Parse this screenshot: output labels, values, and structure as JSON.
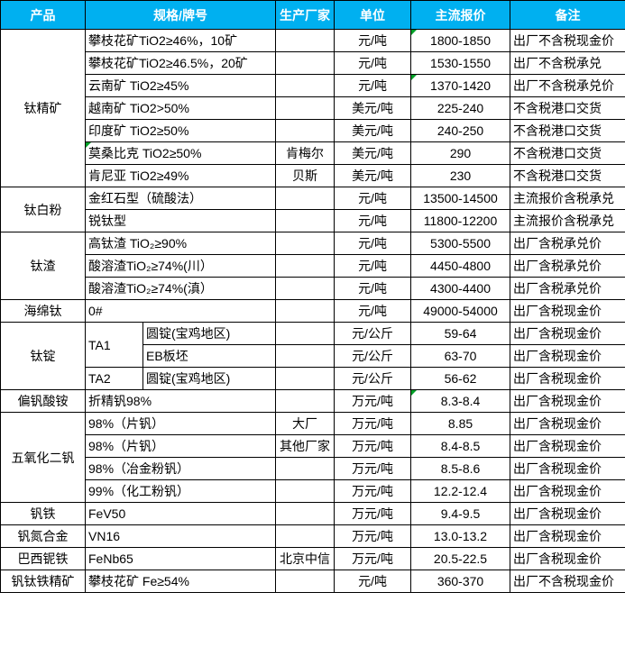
{
  "colors": {
    "header_bg": "#00B0F0",
    "header_text": "#FFFFFF",
    "grid_border": "#000000",
    "error_marker": "#00A028"
  },
  "table": {
    "header": [
      {
        "label": "产品",
        "colspan": 1
      },
      {
        "label": "规格/牌号",
        "colspan": 2
      },
      {
        "label": "生产厂家",
        "colspan": 1
      },
      {
        "label": "单位",
        "colspan": 1
      },
      {
        "label": "主流报价",
        "colspan": 1
      },
      {
        "label": "备注",
        "colspan": 1
      }
    ],
    "rows": [
      {
        "cells": [
          {
            "name": "product",
            "text": "钛精矿",
            "rowspan": 7,
            "align": "center"
          },
          {
            "name": "spec",
            "text": "攀枝花矿TiO2≥46%，10矿",
            "colspan": 2,
            "align": "left"
          },
          {
            "name": "manufacturer",
            "text": "",
            "align": "center"
          },
          {
            "name": "unit",
            "text": "元/吨",
            "align": "center"
          },
          {
            "name": "price",
            "text": "1800-1850",
            "align": "center",
            "marker": true
          },
          {
            "name": "note",
            "text": "出厂不含税现金价",
            "align": "left"
          }
        ]
      },
      {
        "cells": [
          {
            "name": "spec",
            "text": "攀枝花矿TiO2≥46.5%，20矿",
            "colspan": 2,
            "align": "left"
          },
          {
            "name": "manufacturer",
            "text": "",
            "align": "center"
          },
          {
            "name": "unit",
            "text": "元/吨",
            "align": "center"
          },
          {
            "name": "price",
            "text": "1530-1550",
            "align": "center"
          },
          {
            "name": "note",
            "text": "出厂不含税承兑",
            "align": "left"
          }
        ]
      },
      {
        "cells": [
          {
            "name": "spec",
            "text": "云南矿 TiO2≥45%",
            "colspan": 2,
            "align": "left"
          },
          {
            "name": "manufacturer",
            "text": "",
            "align": "center"
          },
          {
            "name": "unit",
            "text": "元/吨",
            "align": "center"
          },
          {
            "name": "price",
            "text": "1370-1420",
            "align": "center",
            "marker": true
          },
          {
            "name": "note",
            "text": "出厂不含税承兑价",
            "align": "left"
          }
        ]
      },
      {
        "cells": [
          {
            "name": "spec",
            "text": "越南矿 TiO2>50%",
            "colspan": 2,
            "align": "left"
          },
          {
            "name": "manufacturer",
            "text": "",
            "align": "center"
          },
          {
            "name": "unit",
            "text": "美元/吨",
            "align": "center"
          },
          {
            "name": "price",
            "text": "225-240",
            "align": "center"
          },
          {
            "name": "note",
            "text": "不含税港口交货",
            "align": "left"
          }
        ]
      },
      {
        "cells": [
          {
            "name": "spec",
            "text": "印度矿 TiO2≥50%",
            "colspan": 2,
            "align": "left"
          },
          {
            "name": "manufacturer",
            "text": "",
            "align": "center"
          },
          {
            "name": "unit",
            "text": "美元/吨",
            "align": "center"
          },
          {
            "name": "price",
            "text": "240-250",
            "align": "center"
          },
          {
            "name": "note",
            "text": "不含税港口交货",
            "align": "left"
          }
        ]
      },
      {
        "cells": [
          {
            "name": "spec",
            "text": "莫桑比克 TiO2≥50%",
            "colspan": 2,
            "align": "left",
            "marker": true
          },
          {
            "name": "manufacturer",
            "text": "肯梅尔",
            "align": "center"
          },
          {
            "name": "unit",
            "text": "美元/吨",
            "align": "center"
          },
          {
            "name": "price",
            "text": "290",
            "align": "center"
          },
          {
            "name": "note",
            "text": "不含税港口交货",
            "align": "left"
          }
        ]
      },
      {
        "cells": [
          {
            "name": "spec",
            "text": "肯尼亚 TiO2≥49%",
            "colspan": 2,
            "align": "left"
          },
          {
            "name": "manufacturer",
            "text": "贝斯",
            "align": "center"
          },
          {
            "name": "unit",
            "text": "美元/吨",
            "align": "center"
          },
          {
            "name": "price",
            "text": "230",
            "align": "center"
          },
          {
            "name": "note",
            "text": "不含税港口交货",
            "align": "left"
          }
        ]
      },
      {
        "cells": [
          {
            "name": "product",
            "text": "钛白粉",
            "rowspan": 2,
            "align": "center"
          },
          {
            "name": "spec",
            "text": "金红石型（硫酸法）",
            "colspan": 2,
            "align": "left"
          },
          {
            "name": "manufacturer",
            "text": "",
            "align": "center"
          },
          {
            "name": "unit",
            "text": "元/吨",
            "align": "center"
          },
          {
            "name": "price",
            "text": "13500-14500",
            "align": "center"
          },
          {
            "name": "note",
            "text": "主流报价含税承兑",
            "align": "left"
          }
        ]
      },
      {
        "cells": [
          {
            "name": "spec",
            "text": "锐钛型",
            "colspan": 2,
            "align": "left"
          },
          {
            "name": "manufacturer",
            "text": "",
            "align": "center"
          },
          {
            "name": "unit",
            "text": "元/吨",
            "align": "center"
          },
          {
            "name": "price",
            "text": "11800-12200",
            "align": "center"
          },
          {
            "name": "note",
            "text": "主流报价含税承兑",
            "align": "left"
          }
        ]
      },
      {
        "cells": [
          {
            "name": "product",
            "text": "钛渣",
            "rowspan": 3,
            "align": "center"
          },
          {
            "name": "spec",
            "text": "高钛渣 TiO₂≥90%",
            "colspan": 2,
            "align": "left"
          },
          {
            "name": "manufacturer",
            "text": "",
            "align": "center"
          },
          {
            "name": "unit",
            "text": "元/吨",
            "align": "center"
          },
          {
            "name": "price",
            "text": "5300-5500",
            "align": "center"
          },
          {
            "name": "note",
            "text": "出厂含税承兑价",
            "align": "left"
          }
        ]
      },
      {
        "cells": [
          {
            "name": "spec",
            "text": "酸溶渣TiO₂≥74%(川）",
            "colspan": 2,
            "align": "left"
          },
          {
            "name": "manufacturer",
            "text": "",
            "align": "center"
          },
          {
            "name": "unit",
            "text": "元/吨",
            "align": "center"
          },
          {
            "name": "price",
            "text": "4450-4800",
            "align": "center"
          },
          {
            "name": "note",
            "text": "出厂含税承兑价",
            "align": "left"
          }
        ]
      },
      {
        "cells": [
          {
            "name": "spec",
            "text": "酸溶渣TiO₂≥74%(滇）",
            "colspan": 2,
            "align": "left"
          },
          {
            "name": "manufacturer",
            "text": "",
            "align": "center"
          },
          {
            "name": "unit",
            "text": "元/吨",
            "align": "center"
          },
          {
            "name": "price",
            "text": "4300-4400",
            "align": "center"
          },
          {
            "name": "note",
            "text": "出厂含税承兑价",
            "align": "left"
          }
        ]
      },
      {
        "cells": [
          {
            "name": "product",
            "text": "海绵钛",
            "align": "center"
          },
          {
            "name": "spec",
            "text": "0#",
            "colspan": 2,
            "align": "left"
          },
          {
            "name": "manufacturer",
            "text": "",
            "align": "center"
          },
          {
            "name": "unit",
            "text": "元/吨",
            "align": "center"
          },
          {
            "name": "price",
            "text": "49000-54000",
            "align": "center"
          },
          {
            "name": "note",
            "text": "出厂含税现金价",
            "align": "left"
          }
        ]
      },
      {
        "cells": [
          {
            "name": "product",
            "text": "钛锭",
            "rowspan": 3,
            "align": "center"
          },
          {
            "name": "grade",
            "text": "TA1",
            "rowspan": 2,
            "align": "left"
          },
          {
            "name": "shape",
            "text": "圆锭(宝鸡地区)",
            "align": "left"
          },
          {
            "name": "manufacturer",
            "text": "",
            "align": "center"
          },
          {
            "name": "unit",
            "text": "元/公斤",
            "align": "center"
          },
          {
            "name": "price",
            "text": "59-64",
            "align": "center"
          },
          {
            "name": "note",
            "text": "出厂含税现金价",
            "align": "left"
          }
        ]
      },
      {
        "cells": [
          {
            "name": "shape",
            "text": "EB板坯",
            "align": "left"
          },
          {
            "name": "manufacturer",
            "text": "",
            "align": "center"
          },
          {
            "name": "unit",
            "text": "元/公斤",
            "align": "center"
          },
          {
            "name": "price",
            "text": "63-70",
            "align": "center"
          },
          {
            "name": "note",
            "text": "出厂含税现金价",
            "align": "left"
          }
        ]
      },
      {
        "cells": [
          {
            "name": "grade",
            "text": "TA2",
            "align": "left"
          },
          {
            "name": "shape",
            "text": "圆锭(宝鸡地区)",
            "align": "left"
          },
          {
            "name": "manufacturer",
            "text": "",
            "align": "center"
          },
          {
            "name": "unit",
            "text": "元/公斤",
            "align": "center"
          },
          {
            "name": "price",
            "text": "56-62",
            "align": "center"
          },
          {
            "name": "note",
            "text": "出厂含税现金价",
            "align": "left"
          }
        ]
      },
      {
        "cells": [
          {
            "name": "product",
            "text": "偏钒酸铵",
            "align": "center"
          },
          {
            "name": "spec",
            "text": "折精钒98%",
            "colspan": 2,
            "align": "left"
          },
          {
            "name": "manufacturer",
            "text": "",
            "align": "center"
          },
          {
            "name": "unit",
            "text": "万元/吨",
            "align": "center"
          },
          {
            "name": "price",
            "text": "8.3-8.4",
            "align": "center",
            "marker": true
          },
          {
            "name": "note",
            "text": "出厂含税现金价",
            "align": "left"
          }
        ]
      },
      {
        "cells": [
          {
            "name": "product",
            "text": "五氧化二钒",
            "rowspan": 4,
            "align": "center"
          },
          {
            "name": "spec",
            "text": "98%（片钒）",
            "colspan": 2,
            "align": "left"
          },
          {
            "name": "manufacturer",
            "text": "大厂",
            "align": "center"
          },
          {
            "name": "unit",
            "text": "万元/吨",
            "align": "center"
          },
          {
            "name": "price",
            "text": "8.85",
            "align": "center"
          },
          {
            "name": "note",
            "text": "出厂含税现金价",
            "align": "left"
          }
        ]
      },
      {
        "cells": [
          {
            "name": "spec",
            "text": "98%（片钒）",
            "colspan": 2,
            "align": "left"
          },
          {
            "name": "manufacturer",
            "text": "其他厂家",
            "align": "center"
          },
          {
            "name": "unit",
            "text": "万元/吨",
            "align": "center"
          },
          {
            "name": "price",
            "text": "8.4-8.5",
            "align": "center"
          },
          {
            "name": "note",
            "text": "出厂含税现金价",
            "align": "left"
          }
        ]
      },
      {
        "cells": [
          {
            "name": "spec",
            "text": "98%（冶金粉钒）",
            "colspan": 2,
            "align": "left"
          },
          {
            "name": "manufacturer",
            "text": "",
            "align": "center"
          },
          {
            "name": "unit",
            "text": "万元/吨",
            "align": "center"
          },
          {
            "name": "price",
            "text": "8.5-8.6",
            "align": "center"
          },
          {
            "name": "note",
            "text": "出厂含税现金价",
            "align": "left"
          }
        ]
      },
      {
        "cells": [
          {
            "name": "spec",
            "text": "99%（化工粉钒）",
            "colspan": 2,
            "align": "left"
          },
          {
            "name": "manufacturer",
            "text": "",
            "align": "center"
          },
          {
            "name": "unit",
            "text": "万元/吨",
            "align": "center"
          },
          {
            "name": "price",
            "text": "12.2-12.4",
            "align": "center"
          },
          {
            "name": "note",
            "text": "出厂含税现金价",
            "align": "left"
          }
        ]
      },
      {
        "cells": [
          {
            "name": "product",
            "text": "钒铁",
            "align": "center"
          },
          {
            "name": "spec",
            "text": "FeV50",
            "colspan": 2,
            "align": "left"
          },
          {
            "name": "manufacturer",
            "text": "",
            "align": "center"
          },
          {
            "name": "unit",
            "text": "万元/吨",
            "align": "center"
          },
          {
            "name": "price",
            "text": "9.4-9.5",
            "align": "center"
          },
          {
            "name": "note",
            "text": "出厂含税现金价",
            "align": "left"
          }
        ]
      },
      {
        "cells": [
          {
            "name": "product",
            "text": "钒氮合金",
            "align": "center"
          },
          {
            "name": "spec",
            "text": "VN16",
            "colspan": 2,
            "align": "left"
          },
          {
            "name": "manufacturer",
            "text": "",
            "align": "center"
          },
          {
            "name": "unit",
            "text": "万元/吨",
            "align": "center"
          },
          {
            "name": "price",
            "text": "13.0-13.2",
            "align": "center"
          },
          {
            "name": "note",
            "text": "出厂含税现金价",
            "align": "left"
          }
        ]
      },
      {
        "cells": [
          {
            "name": "product",
            "text": "巴西铌铁",
            "align": "center"
          },
          {
            "name": "spec",
            "text": "FeNb65",
            "colspan": 2,
            "align": "left"
          },
          {
            "name": "manufacturer",
            "text": "北京中信",
            "align": "center"
          },
          {
            "name": "unit",
            "text": "万元/吨",
            "align": "center"
          },
          {
            "name": "price",
            "text": "20.5-22.5",
            "align": "center"
          },
          {
            "name": "note",
            "text": "出厂含税现金价",
            "align": "left"
          }
        ]
      },
      {
        "cells": [
          {
            "name": "product",
            "text": "钒钛铁精矿",
            "align": "center"
          },
          {
            "name": "spec",
            "text": "攀枝花矿 Fe≥54%",
            "colspan": 2,
            "align": "left"
          },
          {
            "name": "manufacturer",
            "text": "",
            "align": "center"
          },
          {
            "name": "unit",
            "text": "元/吨",
            "align": "center"
          },
          {
            "name": "price",
            "text": "360-370",
            "align": "center"
          },
          {
            "name": "note",
            "text": "出厂不含税现金价",
            "align": "left"
          }
        ]
      }
    ]
  }
}
